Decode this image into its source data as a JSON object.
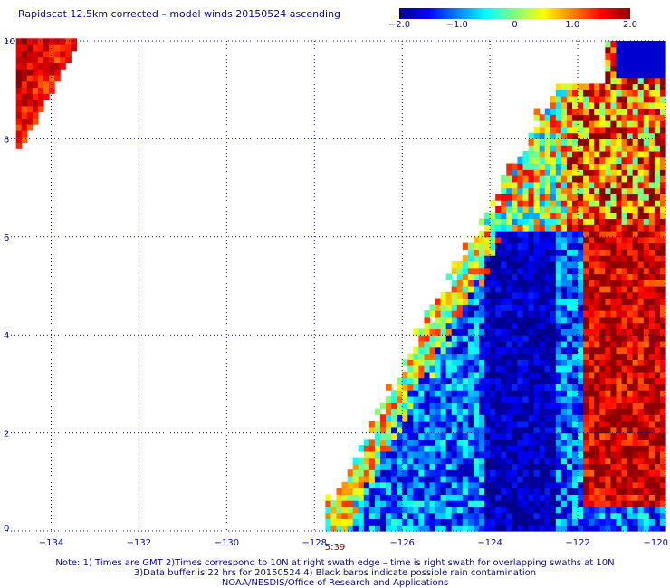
{
  "title": "Rapidscat 12.5km corrected – model winds 20150524 ascending",
  "colorbar": {
    "ticks": [
      "−2.0",
      "−1.0",
      "0",
      "1.0",
      "2.0"
    ],
    "tick_values": [
      -2.0,
      -1.0,
      0,
      1.0,
      2.0
    ],
    "range": [
      -2.0,
      2.0
    ],
    "colors": [
      "#00008c",
      "#0000ff",
      "#0080ff",
      "#00ffff",
      "#80ff80",
      "#ffff00",
      "#ff8000",
      "#ff0000",
      "#8c0000"
    ]
  },
  "notes": {
    "time_label": "5:39",
    "line1": "Note: 1) Times are GMT 2)Times correspond to 10N at right swath edge – time is right swath for overlapping swaths at 10N",
    "line2": "3)Data buffer is 22 hrs for 20150524 4) Black barbs indicate possible rain contamination",
    "line3": "NOAA/NESDIS/Office of Research and Applications"
  },
  "chart_data": {
    "type": "heatmap",
    "title": "Rapidscat 12.5km corrected – model winds 20150524 ascending",
    "xlabel": "",
    "ylabel": "",
    "xlim": [
      -135,
      -120
    ],
    "ylim": [
      0,
      10
    ],
    "x_ticks": [
      -134,
      -132,
      -130,
      -128,
      -126,
      -124,
      -122,
      -120
    ],
    "x_tick_labels": [
      "−134",
      "−132",
      "−130",
      "−128",
      "−126",
      "−124",
      "−122",
      "−120"
    ],
    "y_ticks": [
      0,
      2,
      4,
      6,
      8,
      10
    ],
    "y_tick_labels": [
      "0",
      "2",
      "4",
      "6",
      "8",
      "10"
    ],
    "grid": true,
    "value_range": [
      -2.0,
      2.0
    ],
    "cell_size_deg": 0.125,
    "regions": [
      {
        "lon": [
          -134.8,
          -133.4
        ],
        "lat": [
          7.8,
          10.0
        ],
        "pattern": "corner",
        "mean": 1.6
      },
      {
        "lon": [
          -128.0,
          -120.0
        ],
        "lat": [
          0.0,
          10.0
        ],
        "pattern": "swath",
        "mean": -0.6
      }
    ]
  }
}
